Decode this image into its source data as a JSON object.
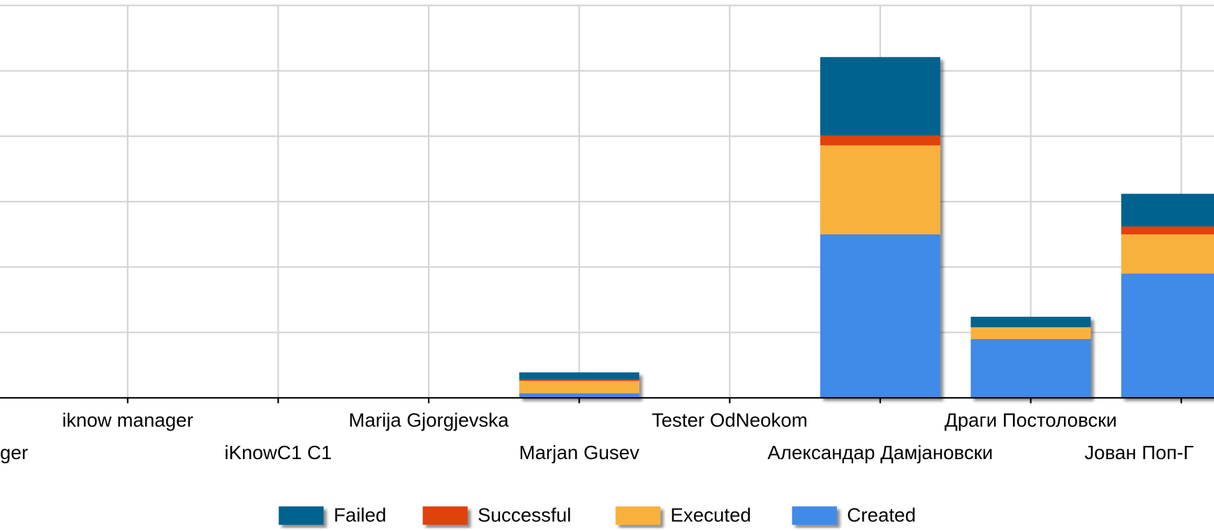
{
  "chart_data": {
    "type": "stacked_bar",
    "categories": [
      "ger",
      "iknow manager",
      "iKnowC1 C1",
      "Marija Gjorgjevska",
      "Marjan Gusev",
      "Tester OdNeokom",
      "Александар Дамјановски",
      "Драги Постоловски",
      "Јован Поп-Г"
    ],
    "series": [
      {
        "name": "Created",
        "color": "#418ae8",
        "values": [
          0,
          0,
          0,
          0,
          0.7,
          0,
          25,
          9,
          19
        ]
      },
      {
        "name": "Executed",
        "color": "#f9b13c",
        "values": [
          0,
          0,
          0,
          0,
          1.9,
          0,
          13.6,
          1.8,
          6
        ]
      },
      {
        "name": "Successful",
        "color": "#e0420b",
        "values": [
          0,
          0,
          0,
          0,
          0.2,
          0,
          1.5,
          0,
          1.2
        ]
      },
      {
        "name": "Failed",
        "color": "#05648f",
        "values": [
          0,
          0,
          0,
          0,
          1.1,
          0,
          12,
          1.6,
          5
        ]
      }
    ],
    "ylim": [
      0,
      60
    ],
    "yticks": [
      0,
      10,
      20,
      30,
      40,
      50,
      60
    ],
    "grid": true,
    "legend": "bottom"
  }
}
